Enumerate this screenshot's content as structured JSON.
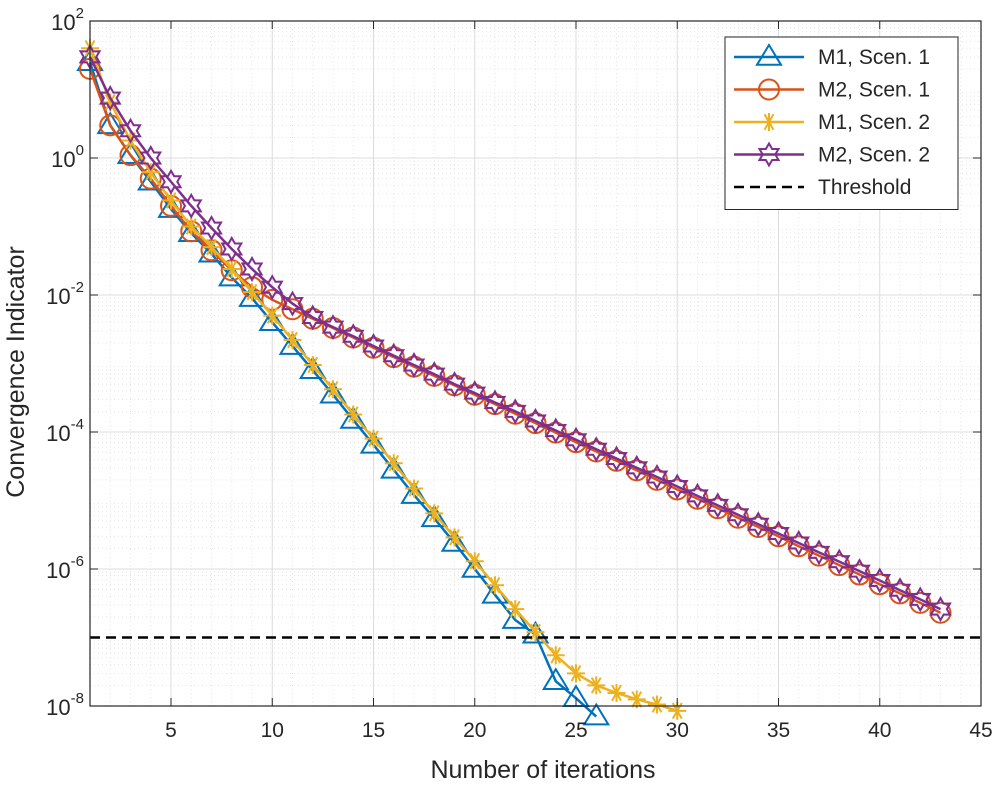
{
  "chart_data": {
    "type": "line",
    "title": "",
    "xlabel": "Number of iterations",
    "ylabel": "Convergence Indicator",
    "xlim": [
      1,
      45
    ],
    "ylim": [
      1e-08,
      100
    ],
    "yscale": "log",
    "grid": true,
    "minor_grid": true,
    "legend_position": "top-right",
    "x_ticks": [
      5,
      10,
      15,
      20,
      25,
      30,
      35,
      40,
      45
    ],
    "x_tick_labels": [
      "5",
      "10",
      "15",
      "20",
      "25",
      "30",
      "35",
      "40",
      "45"
    ],
    "y_ticks": [
      1e-08,
      1e-06,
      0.0001,
      0.01,
      1,
      100
    ],
    "y_tick_labels": [
      {
        "base": "10",
        "exp": "-8"
      },
      {
        "base": "10",
        "exp": "-6"
      },
      {
        "base": "10",
        "exp": "-4"
      },
      {
        "base": "10",
        "exp": "-2"
      },
      {
        "base": "10",
        "exp": "0"
      },
      {
        "base": "10",
        "exp": "2"
      }
    ],
    "series": [
      {
        "name": "M1, Scen. 1",
        "color": "#0072BD",
        "marker": "triangle",
        "x": [
          1,
          2,
          3,
          4,
          5,
          6,
          7,
          8,
          9,
          10,
          11,
          12,
          13,
          14,
          15,
          16,
          17,
          18,
          19,
          20,
          21,
          22,
          23,
          24,
          25,
          26
        ],
        "y": [
          25,
          3,
          1.1,
          0.45,
          0.18,
          0.08,
          0.04,
          0.018,
          0.009,
          0.004,
          0.0018,
          0.0008,
          0.00035,
          0.00015,
          6.5e-05,
          2.8e-05,
          1.2e-05,
          5.5e-06,
          2.4e-06,
          1e-06,
          4.2e-07,
          1.8e-07,
          1.1e-07,
          2.3e-08,
          1.3e-08,
          7e-09
        ]
      },
      {
        "name": "M2, Scen. 1",
        "color": "#D95319",
        "marker": "circle",
        "x": [
          1,
          2,
          3,
          4,
          5,
          6,
          7,
          8,
          9,
          10,
          11,
          12,
          13,
          14,
          15,
          16,
          17,
          18,
          19,
          20,
          21,
          22,
          23,
          24,
          25,
          26,
          27,
          28,
          29,
          30,
          31,
          32,
          33,
          34,
          35,
          36,
          37,
          38,
          39,
          40,
          41,
          42,
          43
        ],
        "y": [
          20,
          3,
          1.1,
          0.5,
          0.2,
          0.085,
          0.045,
          0.023,
          0.013,
          0.0085,
          0.0062,
          0.0045,
          0.0033,
          0.0024,
          0.0017,
          0.00124,
          0.0009,
          0.00066,
          0.00048,
          0.00035,
          0.000255,
          0.000185,
          0.000135,
          9.8e-05,
          7.1e-05,
          5.2e-05,
          3.8e-05,
          2.75e-05,
          2e-05,
          1.45e-05,
          1.06e-05,
          7.7e-06,
          5.6e-06,
          4.1e-06,
          3e-06,
          2.15e-06,
          1.57e-06,
          1.14e-06,
          8.3e-07,
          6e-07,
          4.4e-07,
          3.2e-07,
          2.3e-07
        ]
      },
      {
        "name": "M1, Scen. 2",
        "color": "#EDB120",
        "marker": "asterisk",
        "x": [
          1,
          2,
          3,
          4,
          5,
          6,
          7,
          8,
          9,
          10,
          11,
          12,
          13,
          14,
          15,
          16,
          17,
          18,
          19,
          20,
          21,
          22,
          23,
          24,
          25,
          26,
          27,
          28,
          29,
          30
        ],
        "y": [
          40,
          6.5,
          1.8,
          0.62,
          0.24,
          0.1,
          0.05,
          0.024,
          0.011,
          0.005,
          0.0022,
          0.00095,
          0.00042,
          0.00018,
          8e-05,
          3.5e-05,
          1.5e-05,
          6.5e-06,
          2.9e-06,
          1.3e-06,
          5.8e-07,
          2.6e-07,
          1.2e-07,
          5.5e-08,
          3e-08,
          2e-08,
          1.55e-08,
          1.25e-08,
          1.05e-08,
          8.5e-09
        ]
      },
      {
        "name": "M2, Scen. 2",
        "color": "#7E2F8E",
        "marker": "hexagram",
        "x": [
          1,
          2,
          3,
          4,
          5,
          6,
          7,
          8,
          9,
          10,
          11,
          12,
          13,
          14,
          15,
          16,
          17,
          18,
          19,
          20,
          21,
          22,
          23,
          24,
          25,
          26,
          27,
          28,
          29,
          30,
          31,
          32,
          33,
          34,
          35,
          36,
          37,
          38,
          39,
          40,
          41,
          42,
          43
        ],
        "y": [
          30,
          7.5,
          2.5,
          1.0,
          0.45,
          0.2,
          0.095,
          0.047,
          0.024,
          0.013,
          0.0075,
          0.0047,
          0.0034,
          0.0025,
          0.0018,
          0.0013,
          0.00095,
          0.0007,
          0.0005,
          0.00037,
          0.00027,
          0.0002,
          0.000145,
          0.000105,
          7.7e-05,
          5.6e-05,
          4.1e-05,
          3e-05,
          2.2e-05,
          1.6e-05,
          1.17e-05,
          8.5e-06,
          6.2e-06,
          4.5e-06,
          3.3e-06,
          2.4e-06,
          1.75e-06,
          1.28e-06,
          9.3e-07,
          6.8e-07,
          4.9e-07,
          3.6e-07,
          2.6e-07
        ]
      },
      {
        "name": "Threshold",
        "color": "#000000",
        "dash": true,
        "x": [
          1,
          45
        ],
        "y": [
          1e-07,
          1e-07
        ]
      }
    ]
  }
}
